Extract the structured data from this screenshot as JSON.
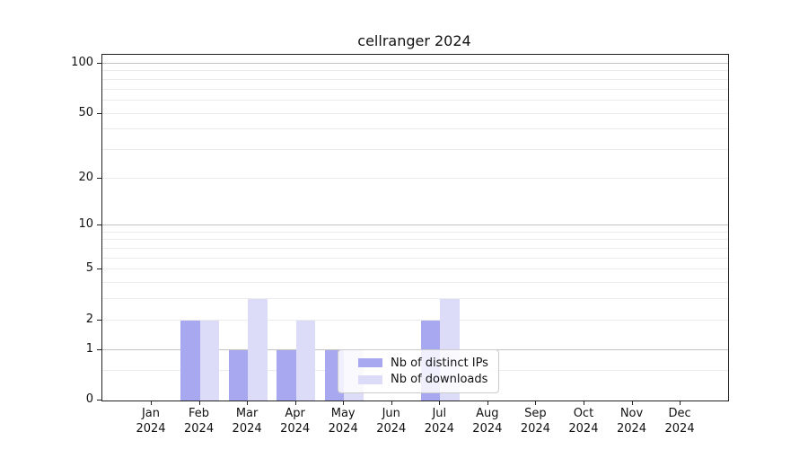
{
  "chart_data": {
    "type": "bar",
    "title": "cellranger 2024",
    "months": [
      "Jan",
      "Feb",
      "Mar",
      "Apr",
      "May",
      "Jun",
      "Jul",
      "Aug",
      "Sep",
      "Oct",
      "Nov",
      "Dec"
    ],
    "year_label": "2024",
    "y_tick_labels": [
      "100",
      "50",
      "20",
      "10",
      "5",
      "2",
      "1",
      "0"
    ],
    "y_tick_values": [
      100,
      50,
      20,
      10,
      5,
      2,
      1,
      0
    ],
    "yscale": "log10(1+y)",
    "ylim": [
      0,
      101
    ],
    "grid": "horizontal major and minor gridlines",
    "legend_position": "lower center",
    "series": [
      {
        "name": "Nb of distinct IPs",
        "color": "#a8a8f0",
        "values": [
          0,
          2,
          1,
          1,
          1,
          0,
          2,
          0,
          0,
          0,
          0,
          0
        ]
      },
      {
        "name": "Nb of downloads",
        "color": "#dcdcf8",
        "values": [
          0,
          2,
          3,
          2,
          1,
          0,
          3,
          0,
          0,
          0,
          0,
          0
        ]
      }
    ]
  }
}
